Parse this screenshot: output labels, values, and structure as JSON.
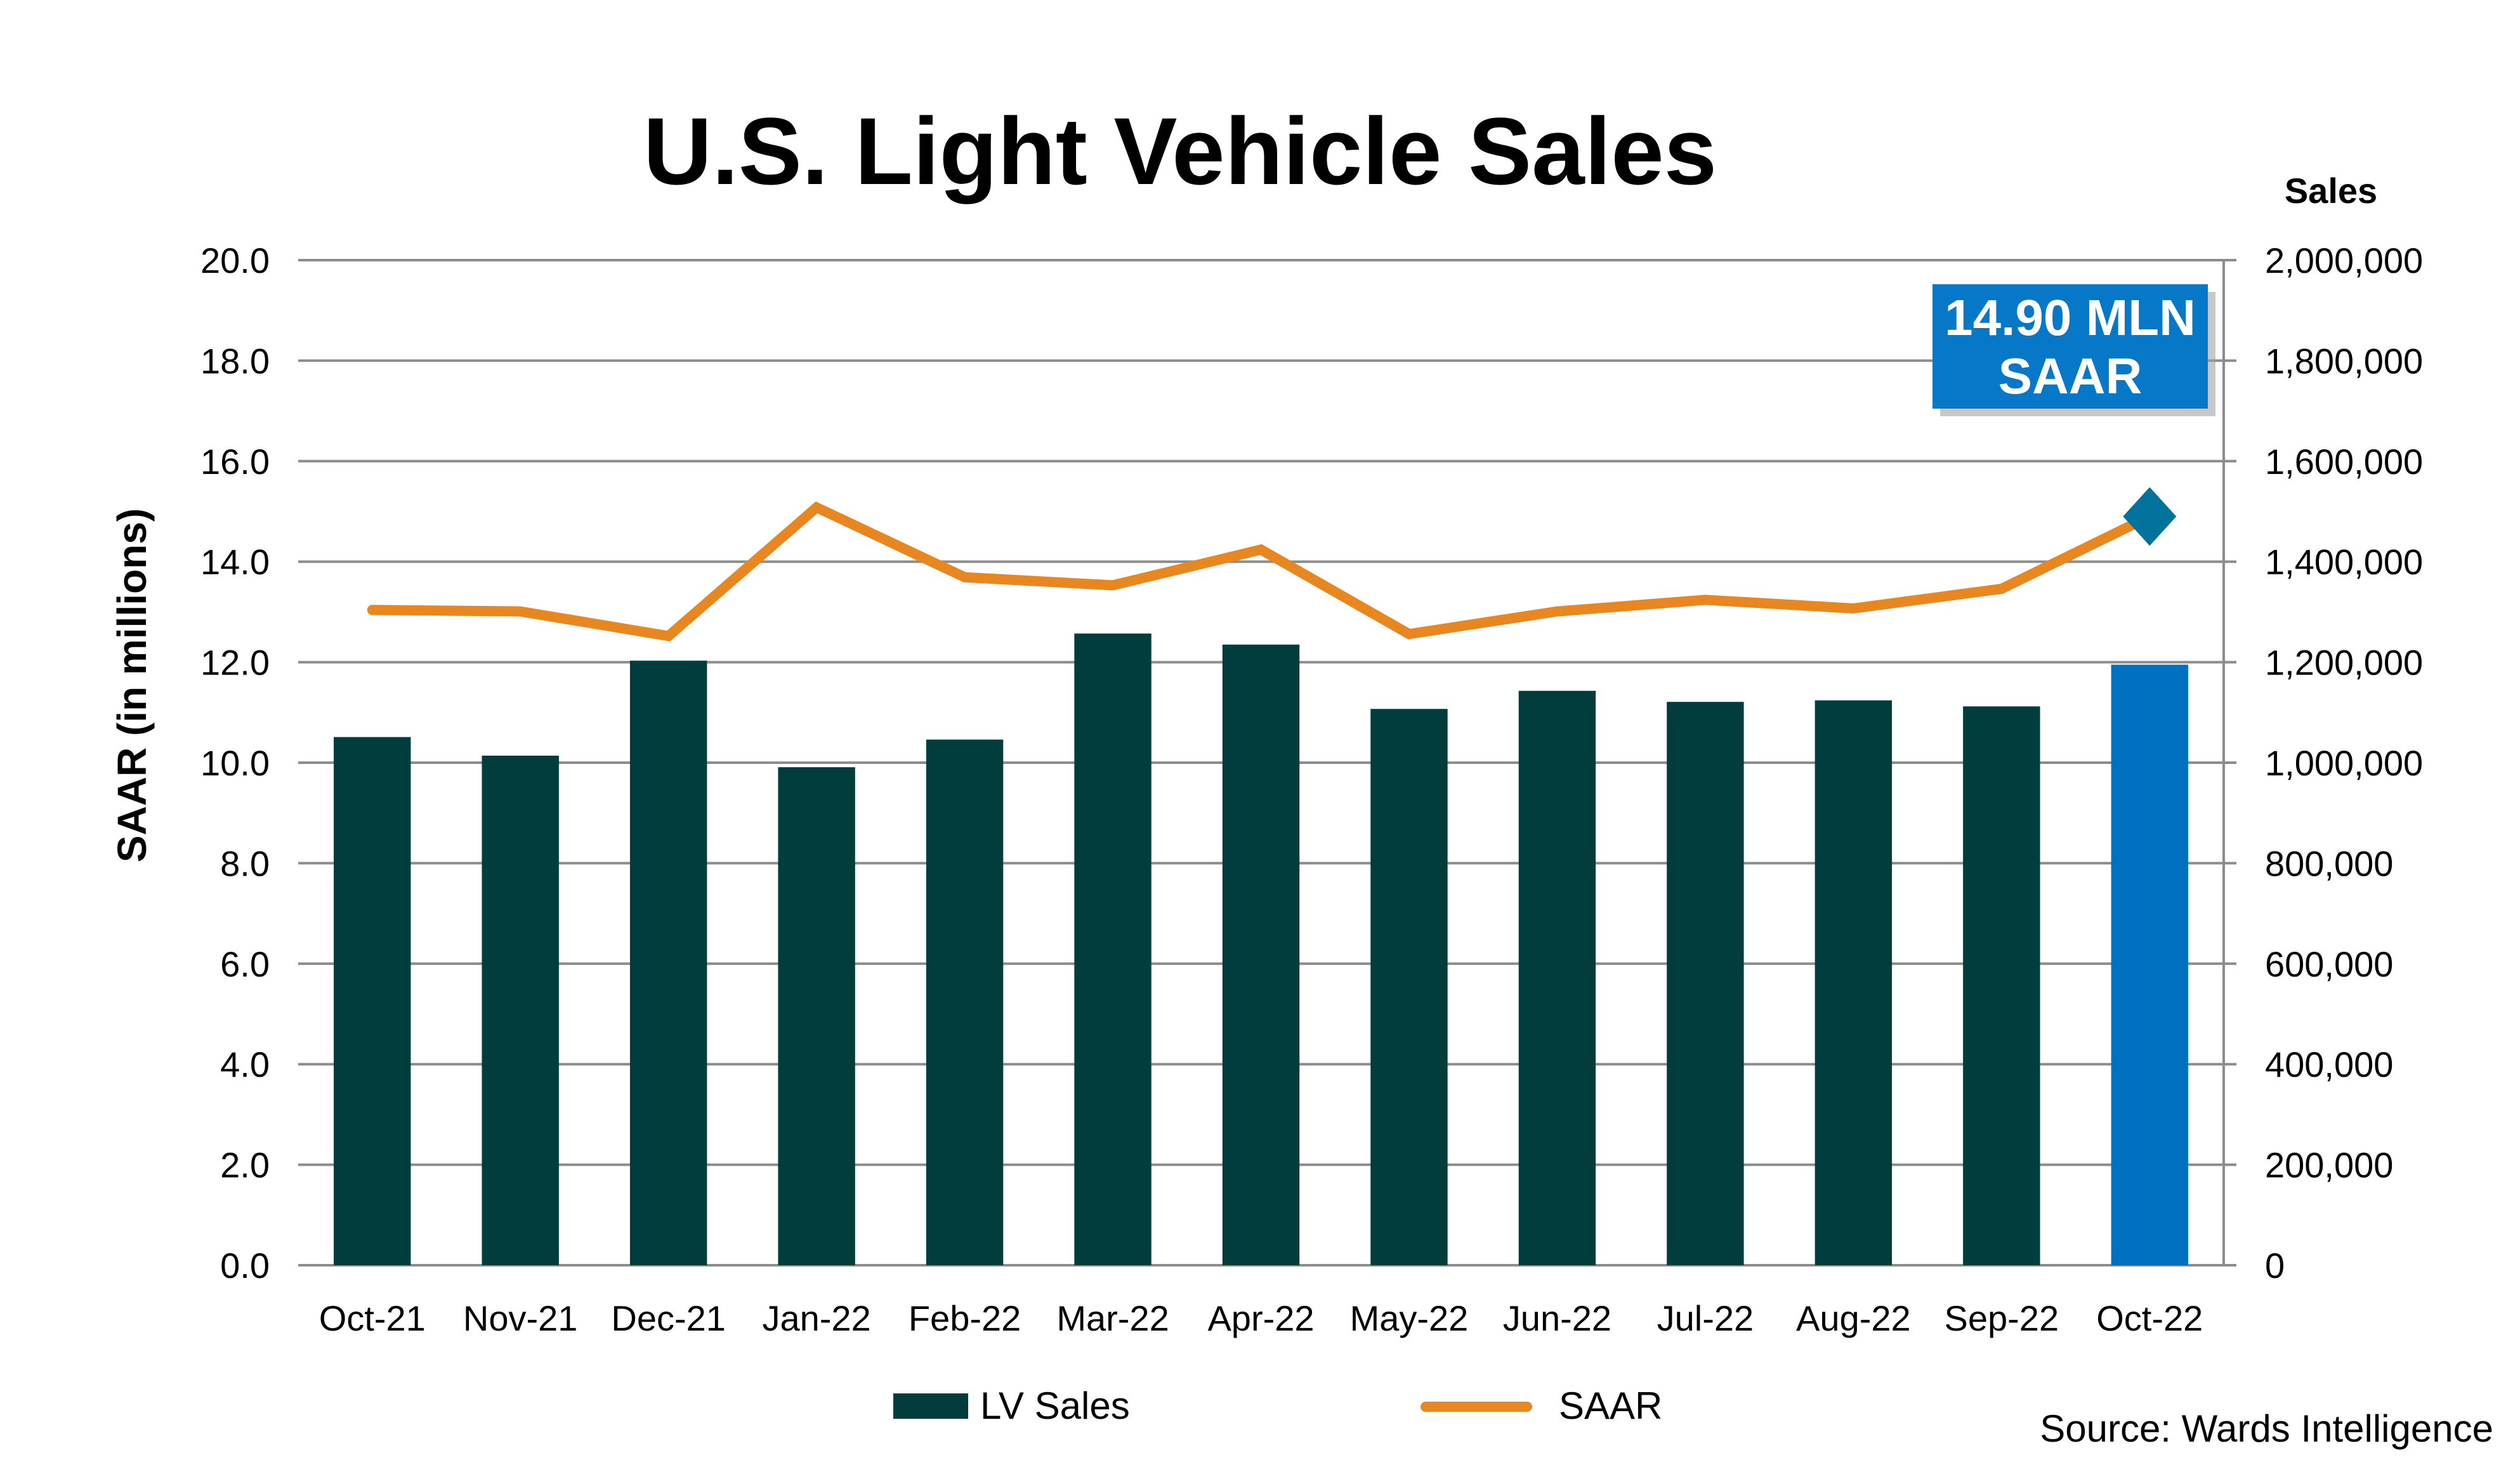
{
  "chart_data": {
    "type": "bar",
    "title": "U.S. Light Vehicle Sales",
    "xlabel": "",
    "ylabel": "SAAR (in millions)",
    "y2label": "Sales",
    "ylim": [
      0,
      20
    ],
    "y2lim": [
      0,
      2000000
    ],
    "yticks": [
      "0.0",
      "2.0",
      "4.0",
      "6.0",
      "8.0",
      "10.0",
      "12.0",
      "14.0",
      "16.0",
      "18.0",
      "20.0"
    ],
    "y2ticks": [
      "0",
      "200,000",
      "400,000",
      "600,000",
      "800,000",
      "1,000,000",
      "1,200,000",
      "1,400,000",
      "1,600,000",
      "1,800,000",
      "2,000,000"
    ],
    "grid": true,
    "legend_position": "bottom",
    "categories": [
      "Oct-21",
      "Nov-21",
      "Dec-21",
      "Jan-22",
      "Feb-22",
      "Mar-22",
      "Apr-22",
      "May-22",
      "Jun-22",
      "Jul-22",
      "Aug-22",
      "Sep-22",
      "Oct-22"
    ],
    "series": [
      {
        "name": "LV Sales",
        "type": "bar",
        "axis": "right",
        "color": "#023d3d",
        "highlight_color": "#0070c0",
        "highlight_index": 12,
        "values": [
          1051000,
          1014000,
          1203000,
          991000,
          1046000,
          1257000,
          1235000,
          1107000,
          1143000,
          1121000,
          1124000,
          1112000,
          1195000
        ]
      },
      {
        "name": "SAAR",
        "type": "line",
        "axis": "left",
        "color": "#e8861f",
        "marker_color": "#00729c",
        "values": [
          13.04,
          13.01,
          12.52,
          15.08,
          13.69,
          13.53,
          14.24,
          12.56,
          13.01,
          13.24,
          13.07,
          13.46,
          14.9
        ]
      }
    ],
    "annotations": [
      {
        "text_line1": "14.90 MLN",
        "text_line2": "SAAR",
        "background": "#0777c8"
      }
    ],
    "source": "Source: Wards Intelligence"
  }
}
